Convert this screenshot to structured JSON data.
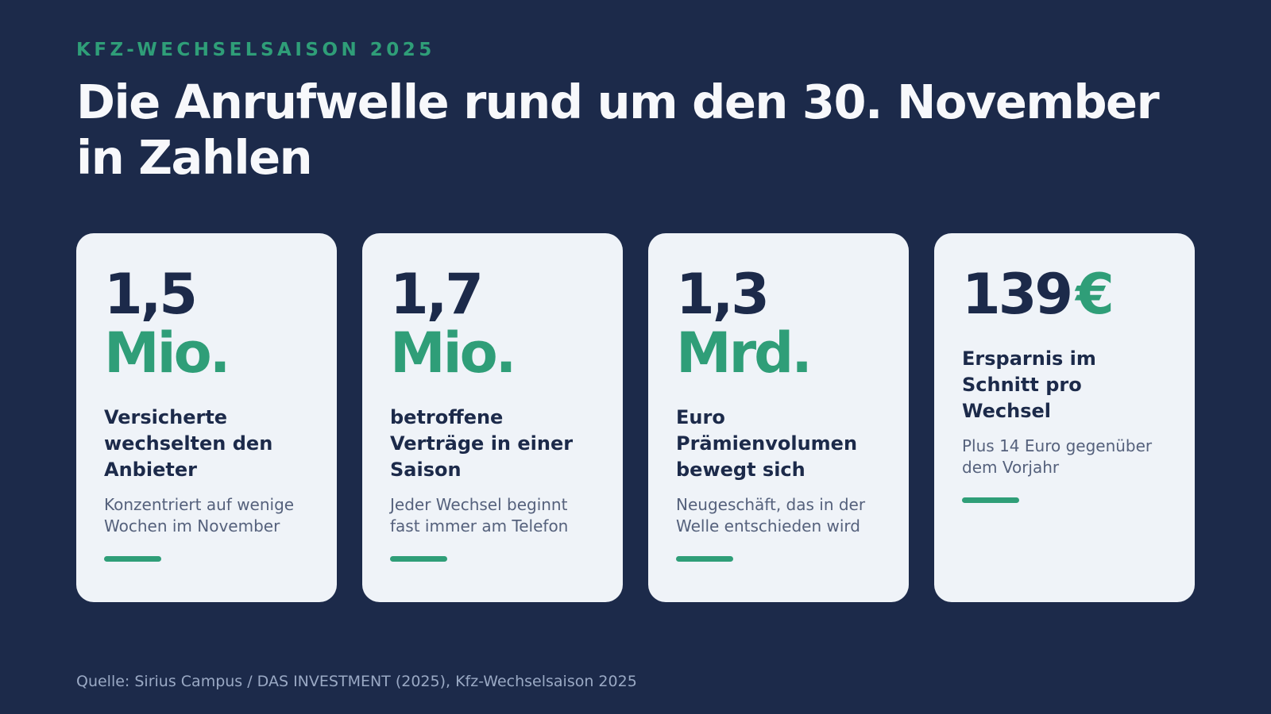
{
  "header": {
    "eyebrow": "KFZ-WECHSELSAISON 2025",
    "title": "Die Anrufwelle rund um den 30. November in Zahlen"
  },
  "cards": [
    {
      "value": "1,5",
      "unit": "Mio.",
      "title": "Versicherte wechselten den Anbieter",
      "subtitle": "Konzentriert auf wenige Wochen im November"
    },
    {
      "value": "1,7",
      "unit": "Mio.",
      "title": "betroffene Verträge in einer Saison",
      "subtitle": "Jeder Wechsel beginnt fast immer am Telefon"
    },
    {
      "value": "1,3",
      "unit": "Mrd.",
      "title": "Euro Prämienvolumen bewegt sich",
      "subtitle": "Neugeschäft, das in der Welle entschieden wird"
    },
    {
      "value": "139",
      "unit": "€",
      "title": "Ersparnis im Schnitt pro Wechsel",
      "subtitle": "Plus 14 Euro gegenüber dem Vorjahr"
    }
  ],
  "footer": {
    "source": "Quelle: Sirius Campus / DAS INVESTMENT (2025), Kfz-Wechselsaison 2025"
  },
  "colors": {
    "background": "#1c2a4a",
    "accent": "#2f9e78",
    "card": "#eff3f8"
  }
}
